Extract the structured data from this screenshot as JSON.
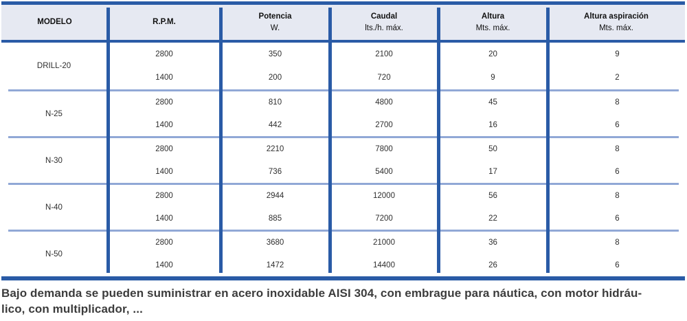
{
  "table": {
    "headers": [
      {
        "label": "MODELO",
        "sub": ""
      },
      {
        "label": "R.P.M.",
        "sub": ""
      },
      {
        "label": "Potencia",
        "sub": "W."
      },
      {
        "label": "Caudal",
        "sub": "lts./h. máx."
      },
      {
        "label": "Altura",
        "sub": "Mts. máx."
      },
      {
        "label": "Altura aspiración",
        "sub": "Mts. máx."
      }
    ],
    "groups": [
      {
        "model": "DRILL-20",
        "rows": [
          [
            "2800",
            "350",
            "2100",
            "20",
            "9"
          ],
          [
            "1400",
            "200",
            "720",
            "9",
            "2"
          ]
        ]
      },
      {
        "model": "N-25",
        "rows": [
          [
            "2800",
            "810",
            "4800",
            "45",
            "8"
          ],
          [
            "1400",
            "442",
            "2700",
            "16",
            "6"
          ]
        ]
      },
      {
        "model": "N-30",
        "rows": [
          [
            "2800",
            "2210",
            "7800",
            "50",
            "8"
          ],
          [
            "1400",
            "736",
            "5400",
            "17",
            "6"
          ]
        ]
      },
      {
        "model": "N-40",
        "rows": [
          [
            "2800",
            "2944",
            "12000",
            "56",
            "8"
          ],
          [
            "1400",
            "885",
            "7200",
            "22",
            "6"
          ]
        ]
      },
      {
        "model": "N-50",
        "rows": [
          [
            "2800",
            "3680",
            "21000",
            "36",
            "8"
          ],
          [
            "1400",
            "1472",
            "14400",
            "26",
            "6"
          ]
        ]
      }
    ]
  },
  "footer": {
    "line1": "Bajo demanda se pueden suministrar en acero inoxidable AISI 304, con embrague para náutica, con motor hidráu-",
    "line2": "lico, con multiplicador, ..."
  },
  "colors": {
    "accent_blue": "#2a5ba6",
    "separator_blue": "#91a8d6",
    "header_background": "#e6e9f2"
  }
}
